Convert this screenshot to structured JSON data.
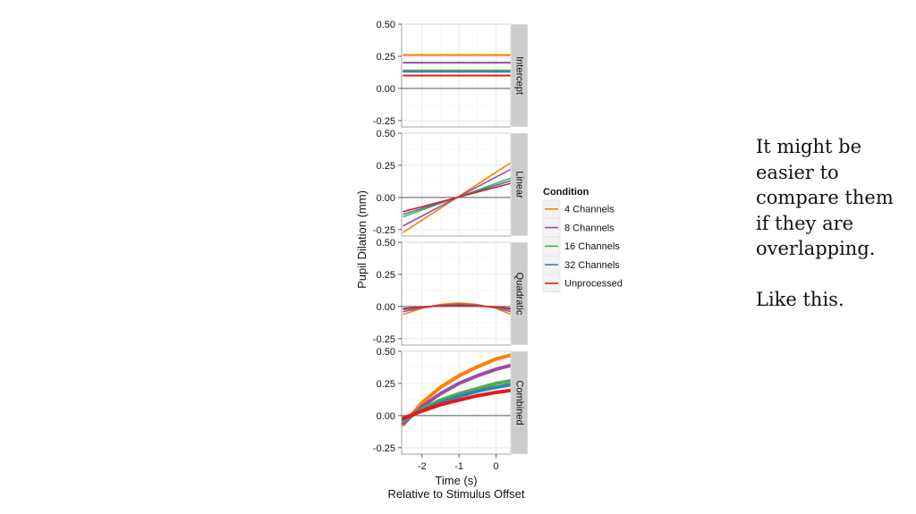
{
  "slide": {
    "note_line1": "It might be\neasier to\ncompare them\nif they are\noverlapping.",
    "note_line2": "Like this."
  },
  "chart_data": {
    "type": "line",
    "ylabel": "Pupil Dilation (mm)",
    "xlabel": "Time (s)",
    "xsublabel": "Relative to Stimulus Offset",
    "xlim": [
      -2.55,
      0.4
    ],
    "ylim": [
      -0.3,
      0.5
    ],
    "xticks": [
      -2,
      -1,
      0
    ],
    "yticks": [
      -0.25,
      0.0,
      0.25,
      0.5
    ],
    "ytick_labels": [
      "-0.25",
      "0.00",
      "0.25",
      "0.50"
    ],
    "xtick_labels": [
      "-2",
      "-1",
      "0"
    ],
    "grid": true,
    "legend": {
      "title": "Condition",
      "placement": "right",
      "entries": [
        "4 Channels",
        "8 Channels",
        "16 Channels",
        "32 Channels",
        "Unprocessed"
      ]
    },
    "series_colors": [
      "#ff7f00",
      "#984ea3",
      "#4daf4a",
      "#377eb8",
      "#e41a1c"
    ],
    "panels": [
      {
        "name": "Intercept",
        "x": [
          -2.5,
          0.4
        ],
        "series": [
          {
            "name": "4 Channels",
            "values": [
              0.26,
              0.26
            ]
          },
          {
            "name": "8 Channels",
            "values": [
              0.2,
              0.2
            ]
          },
          {
            "name": "16 Channels",
            "values": [
              0.14,
              0.14
            ]
          },
          {
            "name": "32 Channels",
            "values": [
              0.13,
              0.13
            ]
          },
          {
            "name": "Unprocessed",
            "values": [
              0.1,
              0.1
            ]
          }
        ]
      },
      {
        "name": "Linear",
        "x": [
          -2.5,
          0.4
        ],
        "series": [
          {
            "name": "4 Channels",
            "values": [
              -0.27,
              0.27
            ]
          },
          {
            "name": "8 Channels",
            "values": [
              -0.22,
              0.22
            ]
          },
          {
            "name": "16 Channels",
            "values": [
              -0.15,
              0.15
            ]
          },
          {
            "name": "32 Channels",
            "values": [
              -0.13,
              0.13
            ]
          },
          {
            "name": "Unprocessed",
            "values": [
              -0.11,
              0.11
            ]
          }
        ]
      },
      {
        "name": "Quadratic",
        "x": [
          -2.5,
          -2.0,
          -1.5,
          -1.0,
          -0.5,
          0.0,
          0.4
        ],
        "series": [
          {
            "name": "4 Channels",
            "values": [
              -0.06,
              -0.015,
              0.016,
              0.028,
              0.016,
              -0.015,
              -0.06
            ]
          },
          {
            "name": "8 Channels",
            "values": [
              -0.04,
              -0.01,
              0.011,
              0.02,
              0.011,
              -0.01,
              -0.04
            ]
          },
          {
            "name": "16 Channels",
            "values": [
              -0.025,
              -0.006,
              0.007,
              0.013,
              0.007,
              -0.006,
              -0.025
            ]
          },
          {
            "name": "32 Channels",
            "values": [
              -0.02,
              -0.005,
              0.006,
              0.01,
              0.006,
              -0.005,
              -0.02
            ]
          },
          {
            "name": "Unprocessed",
            "values": [
              -0.015,
              -0.004,
              0.004,
              0.008,
              0.004,
              -0.004,
              -0.015
            ]
          }
        ]
      },
      {
        "name": "Combined",
        "x": [
          -2.5,
          -2.0,
          -1.5,
          -1.0,
          -0.5,
          0.0,
          0.4
        ],
        "series": [
          {
            "name": "4 Channels",
            "values": [
              -0.07,
              0.1,
              0.22,
              0.31,
              0.38,
              0.44,
              0.47
            ]
          },
          {
            "name": "8 Channels",
            "values": [
              -0.06,
              0.07,
              0.17,
              0.25,
              0.31,
              0.36,
              0.39
            ]
          },
          {
            "name": "16 Channels",
            "values": [
              -0.04,
              0.05,
              0.12,
              0.17,
              0.21,
              0.25,
              0.27
            ]
          },
          {
            "name": "32 Channels",
            "values": [
              -0.03,
              0.04,
              0.1,
              0.15,
              0.19,
              0.22,
              0.24
            ]
          },
          {
            "name": "Unprocessed",
            "values": [
              -0.02,
              0.035,
              0.085,
              0.12,
              0.155,
              0.18,
              0.195
            ]
          }
        ]
      }
    ]
  }
}
